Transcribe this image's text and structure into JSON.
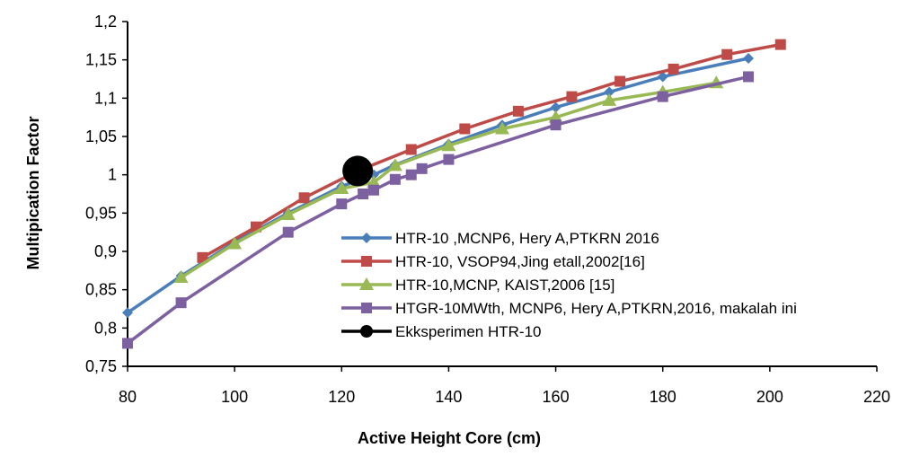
{
  "chart_data": {
    "type": "line",
    "title": "",
    "xlabel": "Active Height Core (cm)",
    "ylabel": "Multipication  Factor",
    "xlim": [
      80,
      220
    ],
    "ylim": [
      0.75,
      1.2
    ],
    "x_ticks": [
      80,
      100,
      120,
      140,
      160,
      180,
      200,
      220
    ],
    "x_tick_labels": [
      "80",
      "100",
      "120",
      "140",
      "160",
      "180",
      "200",
      "220"
    ],
    "y_ticks": [
      0.75,
      0.8,
      0.85,
      0.9,
      0.95,
      1.0,
      1.05,
      1.1,
      1.15,
      1.2
    ],
    "y_tick_labels": [
      "0,75",
      "0,8",
      "0,85",
      "0,9",
      "0,95",
      "1",
      "1,05",
      "1,1",
      "1,15",
      "1,2"
    ],
    "grid": false,
    "legend_position": "center-right",
    "series": [
      {
        "name": "HTR-10 ,MCNP6, Hery A,PTKRN 2016",
        "color": "#4a7ebb",
        "marker": "diamond",
        "points": [
          [
            80,
            0.82
          ],
          [
            90,
            0.868
          ],
          [
            100,
            0.912
          ],
          [
            110,
            0.95
          ],
          [
            120,
            0.985
          ],
          [
            126,
            1.0
          ],
          [
            130,
            1.013
          ],
          [
            140,
            1.04
          ],
          [
            150,
            1.065
          ],
          [
            160,
            1.088
          ],
          [
            170,
            1.108
          ],
          [
            180,
            1.128
          ],
          [
            196,
            1.152
          ]
        ]
      },
      {
        "name": "HTR-10, VSOP94,Jing etall,2002[16]",
        "color": "#be4b48",
        "marker": "square",
        "points": [
          [
            94,
            0.892
          ],
          [
            104,
            0.932
          ],
          [
            113,
            0.97
          ],
          [
            123,
            1.005
          ],
          [
            133,
            1.033
          ],
          [
            143,
            1.06
          ],
          [
            153,
            1.083
          ],
          [
            163,
            1.102
          ],
          [
            172,
            1.122
          ],
          [
            182,
            1.138
          ],
          [
            192,
            1.157
          ],
          [
            202,
            1.17
          ]
        ]
      },
      {
        "name": "HTR-10,MCNP, KAIST,2006 [15]",
        "color": "#98b954",
        "marker": "triangle",
        "points": [
          [
            90,
            0.866
          ],
          [
            100,
            0.91
          ],
          [
            110,
            0.948
          ],
          [
            120,
            0.982
          ],
          [
            126,
            0.99
          ],
          [
            130,
            1.012
          ],
          [
            140,
            1.038
          ],
          [
            150,
            1.06
          ],
          [
            160,
            1.075
          ],
          [
            170,
            1.097
          ],
          [
            180,
            1.108
          ],
          [
            190,
            1.12
          ]
        ]
      },
      {
        "name": "HTGR-10MWth, MCNP6, Hery A,PTKRN,2016, makalah ini",
        "color": "#7d60a0",
        "marker": "square",
        "points": [
          [
            80,
            0.78
          ],
          [
            90,
            0.833
          ],
          [
            110,
            0.925
          ],
          [
            120,
            0.962
          ],
          [
            124,
            0.975
          ],
          [
            126,
            0.98
          ],
          [
            130,
            0.994
          ],
          [
            133,
            1.0
          ],
          [
            135,
            1.008
          ],
          [
            140,
            1.02
          ],
          [
            160,
            1.065
          ],
          [
            180,
            1.102
          ],
          [
            196,
            1.128
          ]
        ]
      },
      {
        "name": "Ekksperimen HTR-10",
        "color": "#000000",
        "marker": "circle",
        "points": [
          [
            123,
            1.005
          ]
        ]
      }
    ]
  }
}
